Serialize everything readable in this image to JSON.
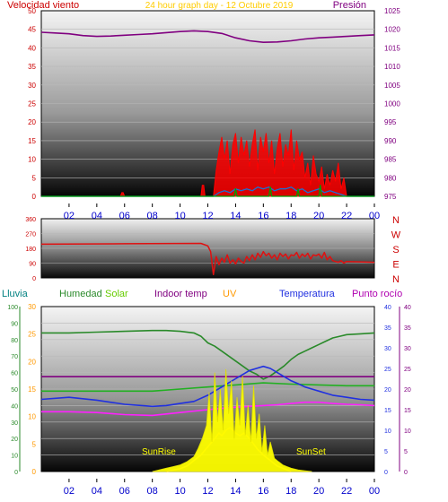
{
  "header": {
    "left_label": "Velocidad viento",
    "center_label": "24 hour graph day - 12 Octubre 2019",
    "right_label": "Presión"
  },
  "colors": {
    "wind_gust": "#ff0000",
    "wind_avg": "#1f6fd0",
    "wind_green": "#00a000",
    "pressure": "#800080",
    "direction": "#e01010",
    "humidity": "#2a8a2a",
    "solar": "#ffff00",
    "indoor": "#800080",
    "uv": "#ff9900",
    "temperature": "#2030e0",
    "dewpoint": "#ff20ff",
    "rain": "#008080",
    "axis_blue": "#0000cc",
    "header_left": "#cc0000",
    "header_center": "#ffcc00",
    "header_right": "#800080"
  },
  "x_ticks": [
    "02",
    "04",
    "06",
    "08",
    "10",
    "12",
    "14",
    "16",
    "18",
    "20",
    "22",
    "00"
  ],
  "chart_data": [
    {
      "type": "line",
      "name": "wind-pressure",
      "y_left": {
        "ylim": [
          0,
          50
        ],
        "ticks": [
          "0",
          "5",
          "10",
          "15",
          "20",
          "25",
          "30",
          "35",
          "40",
          "45",
          "50"
        ]
      },
      "y_right": {
        "ylim": [
          975,
          1025
        ],
        "ticks": [
          "975",
          "980",
          "985",
          "990",
          "995",
          "1000",
          "1005",
          "1010",
          "1015",
          "1020",
          "1025"
        ]
      },
      "series": [
        {
          "key": "pressure",
          "axis": "right",
          "x": [
            0,
            1,
            2,
            3,
            4,
            5,
            6,
            7,
            8,
            9,
            10,
            11,
            12,
            13,
            14,
            15,
            16,
            17,
            18,
            19,
            20,
            21,
            22,
            23,
            24
          ],
          "y": [
            1019.2,
            1019.0,
            1018.8,
            1018.3,
            1018.1,
            1018.2,
            1018.4,
            1018.6,
            1018.8,
            1019.1,
            1019.4,
            1019.6,
            1019.4,
            1018.9,
            1017.7,
            1016.9,
            1016.5,
            1016.6,
            1016.9,
            1017.4,
            1017.7,
            1017.9,
            1018.1,
            1018.3,
            1018.5
          ]
        },
        {
          "key": "wind_gust",
          "axis": "left",
          "x": [
            0,
            2,
            4,
            5.7,
            5.8,
            5.9,
            6.0,
            8,
            10,
            11.5,
            11.6,
            11.7,
            11.8,
            12.0,
            12.4,
            12.6,
            12.8,
            13.0,
            13.2,
            13.4,
            13.6,
            13.8,
            14.0,
            14.2,
            14.4,
            14.6,
            14.8,
            15.0,
            15.2,
            15.4,
            15.6,
            15.8,
            16.0,
            16.2,
            16.4,
            16.6,
            16.8,
            17.0,
            17.2,
            17.4,
            17.6,
            17.8,
            18.0,
            18.2,
            18.4,
            18.6,
            18.8,
            19.0,
            19.2,
            19.4,
            19.6,
            19.8,
            20.0,
            20.2,
            20.4,
            20.6,
            20.8,
            21.0,
            21.2,
            21.4,
            21.6,
            21.8,
            22.0,
            24
          ],
          "y": [
            0,
            0,
            0,
            0,
            1,
            1,
            0,
            0,
            0,
            0,
            3,
            3,
            0,
            0,
            0,
            7,
            12,
            16,
            10,
            15,
            6,
            14,
            17,
            9,
            16,
            11,
            15,
            8,
            14,
            18,
            7,
            16,
            12,
            17,
            9,
            15,
            6,
            13,
            17,
            8,
            14,
            11,
            18,
            7,
            15,
            10,
            12,
            5,
            9,
            3,
            11,
            6,
            4,
            8,
            2,
            6,
            3,
            7,
            4,
            9,
            2,
            5,
            0,
            0
          ]
        },
        {
          "key": "wind_avg",
          "axis": "left",
          "x": [
            0,
            10,
            11.8,
            12.4,
            12.8,
            13.2,
            13.6,
            14.0,
            14.4,
            14.8,
            15.2,
            15.6,
            16.0,
            16.4,
            16.8,
            17.2,
            17.6,
            18.0,
            18.4,
            18.8,
            19.2,
            19.6,
            20.0,
            20.4,
            20.8,
            21.2,
            21.6,
            22.0,
            24
          ],
          "y": [
            0,
            0,
            0,
            0,
            1,
            1.5,
            1,
            2,
            1.5,
            2,
            1.5,
            2.5,
            2,
            2.5,
            1.5,
            2,
            2,
            2.5,
            1.5,
            2,
            1,
            1.5,
            2,
            1,
            1.5,
            1,
            0.5,
            0,
            0
          ]
        },
        {
          "key": "wind_green",
          "axis": "left",
          "x": [
            0,
            13.9,
            14.0,
            14.1,
            16.4,
            16.5,
            16.6,
            18.4,
            18.5,
            18.6,
            20.0,
            20.1,
            20.2,
            24
          ],
          "y": [
            0,
            0,
            2,
            0,
            0,
            2.5,
            0,
            0,
            2,
            0,
            0,
            3,
            0,
            0
          ]
        }
      ]
    },
    {
      "type": "line",
      "name": "wind-direction",
      "y_left": {
        "ylim": [
          0,
          360
        ],
        "ticks": [
          "0",
          "90",
          "180",
          "270",
          "360"
        ]
      },
      "y_right_labels": [
        "N",
        "W",
        "S",
        "E",
        "N"
      ],
      "series": [
        {
          "key": "direction",
          "axis": "left",
          "x": [
            0,
            6,
            11.5,
            12.0,
            12.2,
            12.4,
            12.6,
            12.8,
            13.0,
            13.2,
            13.4,
            13.6,
            13.8,
            14.0,
            14.2,
            14.4,
            14.6,
            14.8,
            15.0,
            15.2,
            15.4,
            15.6,
            15.8,
            16.0,
            16.2,
            16.4,
            16.6,
            16.8,
            17.0,
            17.2,
            17.4,
            17.6,
            17.8,
            18.0,
            18.2,
            18.4,
            18.6,
            18.8,
            19.0,
            19.2,
            19.4,
            19.6,
            19.8,
            20.0,
            20.2,
            20.4,
            20.6,
            20.8,
            21.0,
            21.2,
            21.4,
            21.6,
            21.8,
            22.0,
            24
          ],
          "y": [
            205,
            208,
            210,
            195,
            160,
            20,
            130,
            80,
            120,
            95,
            140,
            90,
            110,
            85,
            120,
            100,
            90,
            130,
            105,
            140,
            110,
            150,
            125,
            160,
            135,
            150,
            120,
            140,
            110,
            150,
            130,
            145,
            115,
            140,
            135,
            155,
            120,
            145,
            130,
            150,
            115,
            140,
            135,
            145,
            120,
            155,
            110,
            130,
            105,
            100,
            95,
            105,
            90,
            100,
            95
          ]
        }
      ]
    },
    {
      "type": "line",
      "name": "humidity-temperature",
      "y_left1": {
        "ylim": [
          0,
          100
        ],
        "ticks": [
          "0",
          "10",
          "20",
          "30",
          "40",
          "50",
          "60",
          "70",
          "80",
          "90",
          "100"
        ]
      },
      "y_left2": {
        "ylim": [
          0,
          30
        ],
        "ticks": [
          "0",
          "5",
          "10",
          "15",
          "20",
          "25",
          "30"
        ]
      },
      "y_right1": {
        "ylim": [
          0,
          40
        ],
        "ticks": [
          "0",
          "5",
          "10",
          "15",
          "20",
          "25",
          "30",
          "35",
          "40"
        ]
      },
      "y_right2": {
        "ylim": [
          0,
          40
        ],
        "ticks": [
          "0",
          "5",
          "10",
          "15",
          "20",
          "25",
          "30",
          "35",
          "40"
        ]
      },
      "legend": [
        "Lluvia",
        "Humedad",
        "Solar",
        "Indoor temp",
        "UV",
        "Temperatura",
        "Punto rocío"
      ],
      "annotations": [
        "SunRise",
        "SunSet"
      ],
      "series": [
        {
          "key": "humidity",
          "axis": "left1",
          "x": [
            0,
            2,
            4,
            6,
            8,
            9,
            10,
            11,
            11.5,
            12,
            12.5,
            13,
            13.5,
            14,
            14.5,
            15,
            15.5,
            16,
            16.5,
            17,
            17.5,
            18,
            18.5,
            19,
            19.5,
            20,
            20.5,
            21,
            22,
            23,
            24
          ],
          "y": [
            84,
            84,
            84.5,
            85,
            85.5,
            85.5,
            85,
            84,
            82,
            78,
            76,
            73,
            70,
            67,
            64,
            61,
            59,
            56,
            58,
            61,
            64,
            68,
            71,
            73,
            75,
            77,
            79,
            81,
            83,
            83.5,
            84
          ]
        },
        {
          "key": "indoor",
          "axis": "right1",
          "x": [
            0,
            24
          ],
          "y": [
            23,
            23
          ]
        },
        {
          "key": "green_temp",
          "axis": "right1",
          "x": [
            0,
            4,
            8,
            10,
            12,
            14,
            16,
            18,
            20,
            22,
            24
          ],
          "y": [
            19.5,
            19.5,
            19.5,
            20,
            20.5,
            21,
            21.5,
            21.2,
            21,
            20.8,
            20.8
          ]
        },
        {
          "key": "temperature",
          "axis": "right1",
          "x": [
            0,
            2,
            4,
            6,
            8,
            9,
            10,
            11,
            12,
            12.5,
            13,
            13.5,
            14,
            14.5,
            15,
            15.5,
            16,
            16.5,
            17,
            17.5,
            18,
            18.5,
            19,
            19.5,
            20,
            20.5,
            21,
            22,
            23,
            24
          ],
          "y": [
            17.5,
            18,
            17.3,
            16.3,
            15.8,
            16,
            16.5,
            17,
            18.5,
            19.5,
            20.5,
            21.5,
            22.5,
            23.5,
            24.5,
            25,
            25.5,
            25,
            24,
            23,
            22,
            21.3,
            20.5,
            20,
            19.5,
            19,
            18.5,
            18,
            17.5,
            17.3
          ]
        },
        {
          "key": "dewpoint",
          "axis": "right1",
          "x": [
            0,
            2,
            4,
            6,
            8,
            10,
            12,
            13,
            14,
            15,
            16,
            17,
            18,
            19,
            20,
            21,
            22,
            23,
            24
          ],
          "y": [
            14.5,
            14.5,
            14.3,
            13.8,
            13.6,
            14.3,
            15,
            15.3,
            15.6,
            15.8,
            16,
            16.2,
            16.5,
            16.8,
            16.8,
            16.5,
            16.3,
            16.2,
            16
          ]
        },
        {
          "key": "uv",
          "axis": "left2",
          "x": [
            9,
            10,
            10.5,
            11,
            11.5,
            12,
            12.5,
            12.8,
            13,
            13.3,
            13.6,
            14,
            14.3,
            14.6,
            15,
            15.3,
            15.6,
            16,
            16.5,
            17,
            17.5,
            18
          ],
          "y": [
            0,
            0.5,
            1,
            2,
            3,
            4.5,
            6,
            7,
            6.5,
            7.5,
            8,
            7,
            6.5,
            7,
            6,
            5,
            4,
            3,
            2,
            1,
            0.5,
            0
          ]
        },
        {
          "key": "solar",
          "axis": "left1",
          "x": [
            8,
            8.5,
            9,
            9.5,
            10,
            10.5,
            11,
            11.3,
            11.6,
            11.9,
            12.1,
            12.3,
            12.5,
            12.7,
            12.9,
            13.1,
            13.3,
            13.5,
            13.7,
            13.9,
            14.1,
            14.3,
            14.5,
            14.7,
            14.9,
            15.1,
            15.3,
            15.5,
            15.7,
            15.9,
            16.1,
            16.3,
            16.5,
            16.8,
            17.1,
            17.4,
            17.7,
            18,
            18.5,
            19,
            19.5
          ],
          "y": [
            0,
            1,
            2,
            3,
            4,
            6,
            9,
            14,
            20,
            28,
            48,
            18,
            60,
            30,
            50,
            25,
            62,
            35,
            55,
            20,
            45,
            28,
            58,
            22,
            40,
            18,
            52,
            20,
            35,
            12,
            28,
            10,
            18,
            8,
            6,
            4,
            3,
            2,
            1,
            0.5,
            0
          ]
        }
      ]
    }
  ]
}
